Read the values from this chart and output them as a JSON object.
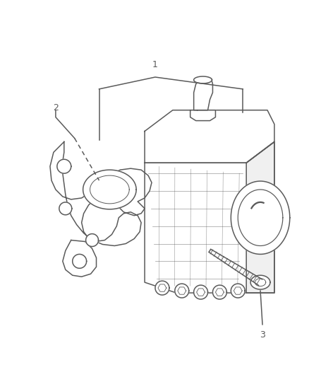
{
  "bg_color": "#ffffff",
  "line_color": "#5a5a5a",
  "label_color": "#5a5a5a",
  "label_1": "1",
  "label_2": "2",
  "label_3": "3",
  "figsize": [
    4.38,
    5.33
  ],
  "dpi": 100
}
